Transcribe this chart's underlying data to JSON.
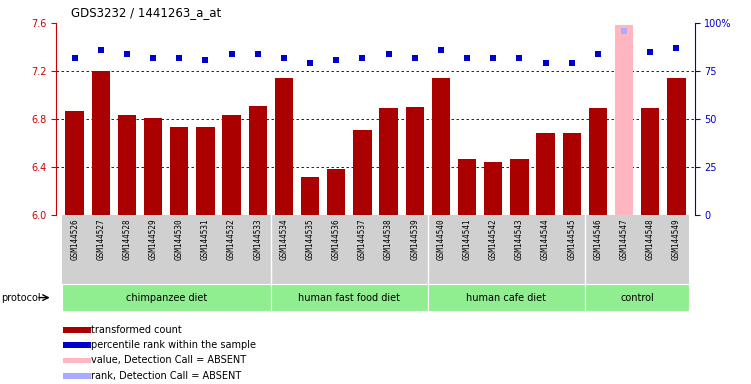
{
  "title": "GDS3232 / 1441263_a_at",
  "samples": [
    "GSM144526",
    "GSM144527",
    "GSM144528",
    "GSM144529",
    "GSM144530",
    "GSM144531",
    "GSM144532",
    "GSM144533",
    "GSM144534",
    "GSM144535",
    "GSM144536",
    "GSM144537",
    "GSM144538",
    "GSM144539",
    "GSM144540",
    "GSM144541",
    "GSM144542",
    "GSM144543",
    "GSM144544",
    "GSM144545",
    "GSM144546",
    "GSM144547",
    "GSM144548",
    "GSM144549"
  ],
  "bar_values": [
    6.87,
    7.2,
    6.83,
    6.81,
    6.73,
    6.73,
    6.83,
    6.91,
    7.14,
    6.32,
    6.38,
    6.71,
    6.89,
    6.9,
    7.14,
    6.47,
    6.44,
    6.47,
    6.68,
    6.68,
    6.89,
    7.58,
    6.89,
    7.14
  ],
  "rank_values": [
    82,
    86,
    84,
    82,
    82,
    81,
    84,
    84,
    82,
    79,
    81,
    82,
    84,
    82,
    86,
    82,
    82,
    82,
    79,
    79,
    84,
    96,
    85,
    87
  ],
  "absent_bar": 21,
  "bar_color": "#AA0000",
  "absent_bar_color": "#FFB6C1",
  "rank_color": "#0000CC",
  "absent_rank_color": "#AAAAFF",
  "ylim_left": [
    6.0,
    7.6
  ],
  "ylim_right": [
    0,
    100
  ],
  "yticks_left": [
    6.0,
    6.4,
    6.8,
    7.2,
    7.6
  ],
  "yticks_right": [
    0,
    25,
    50,
    75,
    100
  ],
  "gridlines": [
    6.4,
    6.8,
    7.2
  ],
  "groups": [
    {
      "label": "chimpanzee diet",
      "start": 0,
      "end": 8
    },
    {
      "label": "human fast food diet",
      "start": 8,
      "end": 14
    },
    {
      "label": "human cafe diet",
      "start": 14,
      "end": 20
    },
    {
      "label": "control",
      "start": 20,
      "end": 24
    }
  ],
  "group_color": "#90EE90",
  "protocol_label": "protocol",
  "legend_items": [
    {
      "label": "transformed count",
      "color": "#AA0000"
    },
    {
      "label": "percentile rank within the sample",
      "color": "#0000CC"
    },
    {
      "label": "value, Detection Call = ABSENT",
      "color": "#FFB6C1"
    },
    {
      "label": "rank, Detection Call = ABSENT",
      "color": "#AAAAFF"
    }
  ],
  "xtick_bg": "#D3D3D3",
  "plot_bg": "#FFFFFF"
}
